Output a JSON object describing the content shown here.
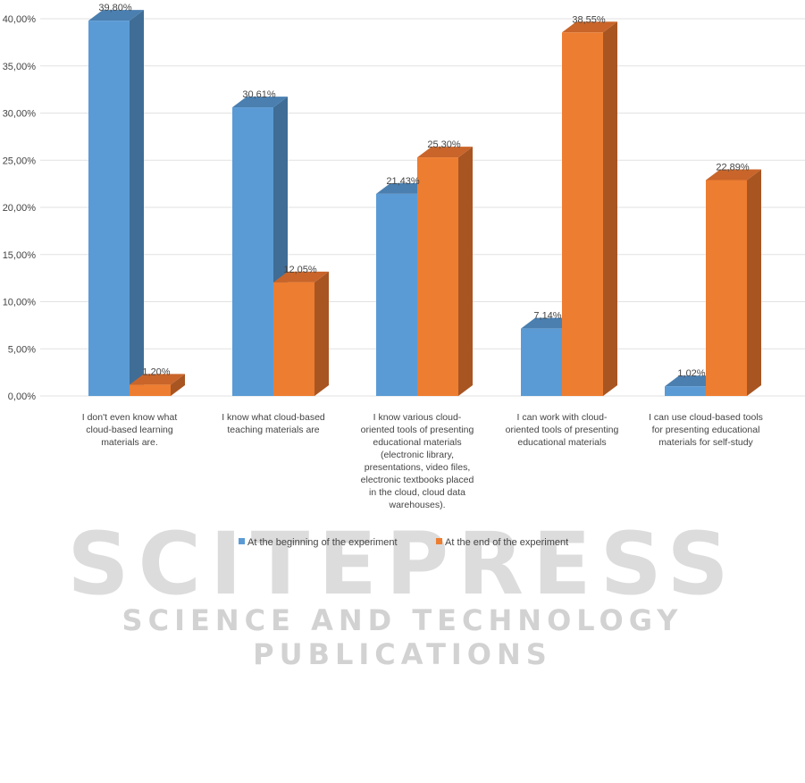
{
  "chart_data": {
    "type": "bar",
    "title": "",
    "xlabel": "",
    "ylabel": "",
    "ylim": [
      0,
      42
    ],
    "y_ticks": [
      "0,00%",
      "5,00%",
      "10,00%",
      "15,00%",
      "20,00%",
      "25,00%",
      "30,00%",
      "35,00%",
      "40,00%"
    ],
    "y_tick_values": [
      0,
      5,
      10,
      15,
      20,
      25,
      30,
      35,
      40
    ],
    "categories": [
      [
        "I don't even know what",
        "cloud-based learning",
        "materials are."
      ],
      [
        "I know what cloud-based",
        "teaching materials are"
      ],
      [
        "I know various cloud-",
        "oriented tools of presenting",
        "educational materials",
        "(electronic library,",
        "presentations, video files,",
        "electronic textbooks placed",
        "in the cloud, cloud data",
        "warehouses)."
      ],
      [
        "I can work with cloud-",
        "oriented tools of presenting",
        "educational materials"
      ],
      [
        "I can use cloud-based tools",
        "for presenting educational",
        "materials for self-study"
      ]
    ],
    "series": [
      {
        "name": "At the beginning of the experiment",
        "values": [
          39.8,
          30.61,
          21.43,
          7.14,
          1.02
        ],
        "labels": [
          "39,80%",
          "30,61%",
          "21,43%",
          "7,14%",
          "1,02%"
        ],
        "color": "#5b9bd5",
        "side_color": "#3f6d96",
        "top_color": "#4a7fb0"
      },
      {
        "name": "At the end of the experiment",
        "values": [
          1.2,
          12.05,
          25.3,
          38.55,
          22.89
        ],
        "labels": [
          "1,20%",
          "12,05%",
          "25,30%",
          "38,55%",
          "22,89%"
        ],
        "color": "#ed7d31",
        "side_color": "#a85522",
        "top_color": "#c9652a"
      }
    ],
    "grid": true,
    "legend_position": "bottom"
  },
  "watermark": {
    "main": "SCITEPRESS",
    "sub": "SCIENCE AND TECHNOLOGY PUBLICATIONS"
  }
}
